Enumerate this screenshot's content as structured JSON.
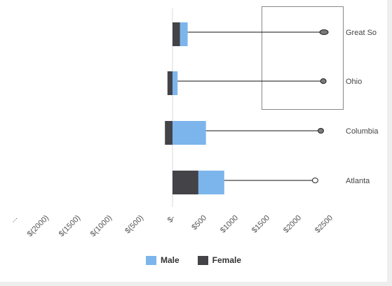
{
  "chart_data": {
    "type": "bar",
    "orientation": "horizontal",
    "stacked": true,
    "categories": [
      "Great So",
      "Ohio",
      "Columbia",
      "Atlanta"
    ],
    "series": [
      {
        "name": "Female",
        "color": "#434348",
        "values": [
          120,
          -80,
          -120,
          410
        ]
      },
      {
        "name": "Male",
        "color": "#7cb5ec",
        "values": [
          120,
          80,
          530,
          410
        ]
      }
    ],
    "markers": [
      2400,
      2390,
      2350,
      2260
    ],
    "xlim": [
      -2500,
      2500
    ],
    "x_tick_labels": [
      "...",
      "$(2000)",
      "$(1500)",
      "$(1000)",
      "$(500)",
      "$-",
      "$500",
      "$1000",
      "$1500",
      "$2000",
      "$2500"
    ],
    "legend_position": "bottom"
  },
  "legend": {
    "male": "Male",
    "female": "Female"
  }
}
